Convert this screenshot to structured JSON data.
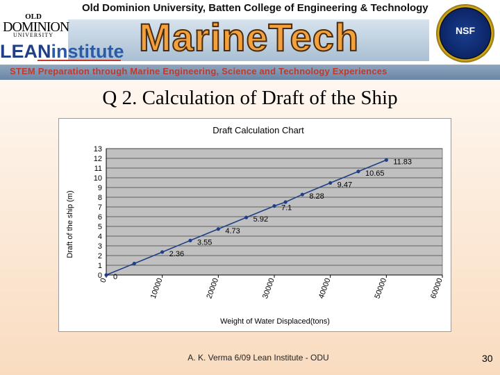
{
  "banner": {
    "title": "Old Dominion University, Batten College of Engineering & Technology",
    "brand": "MarineTech",
    "tagline": "STEM Preparation through Marine Engineering, Science and Technology Experiences",
    "odu_logo": {
      "top": "OLD",
      "middle": "DOMINION",
      "bottom": "UNIVERSITY"
    },
    "lean_logo": {
      "lean": "LEAN",
      "institute": "institute"
    },
    "nsf_logo": "NSF"
  },
  "slide": {
    "title": "Q 2. Calculation of Draft of the Ship",
    "footer": "A. K. Verma 6/09 Lean Institute - ODU",
    "page_number": "30"
  },
  "chart_data": {
    "type": "line",
    "title": "Draft Calculation Chart",
    "xlabel": "Weight  of Water  Displaced(tons)",
    "ylabel": "Draft of the ship (m)",
    "xlim": [
      0,
      60000
    ],
    "ylim": [
      0,
      13
    ],
    "x_ticks": [
      0,
      10000,
      20000,
      30000,
      40000,
      50000,
      60000
    ],
    "y_ticks": [
      0,
      1,
      2,
      3,
      4,
      5,
      6,
      7,
      8,
      9,
      10,
      11,
      12,
      13
    ],
    "series": [
      {
        "x": [
          0,
          5000,
          10000,
          15000,
          20000,
          25000,
          30000,
          32000,
          35000,
          40000,
          45000,
          50000
        ],
        "y": [
          0,
          1.18,
          2.36,
          3.55,
          4.73,
          5.92,
          7.1,
          7.5,
          8.28,
          9.47,
          10.65,
          11.83
        ],
        "data_labels": [
          "0",
          "",
          "2.36",
          "3.55",
          "4.73",
          "5.92",
          "7.1",
          "",
          "8.28",
          "9.47",
          "10.65",
          "11.83"
        ]
      }
    ],
    "grid": true,
    "line_color": "#1f3f86",
    "plot_background": "#c0c0c0"
  }
}
